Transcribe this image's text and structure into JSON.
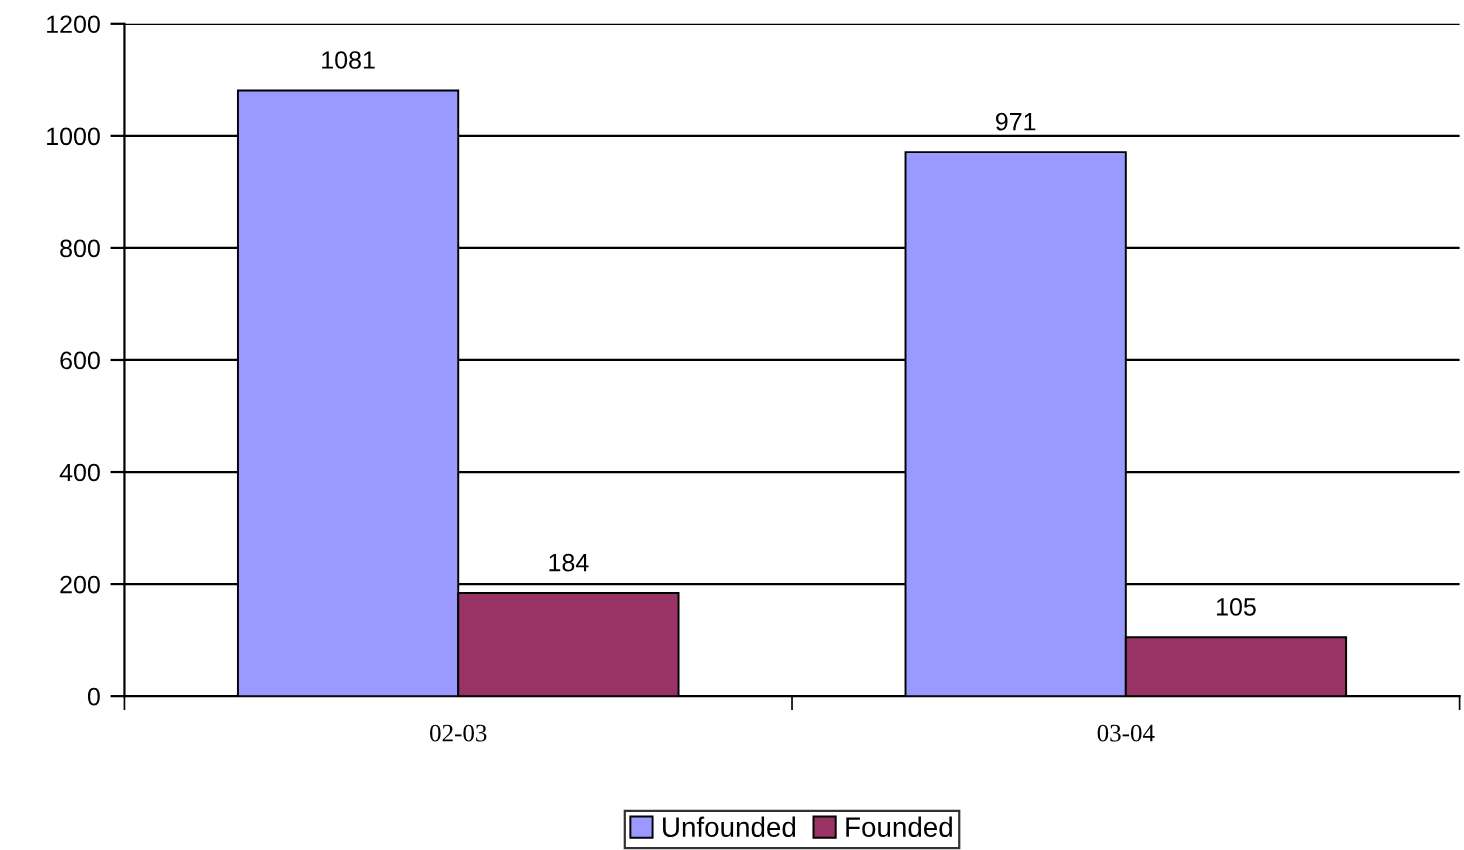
{
  "chart_data": {
    "type": "bar",
    "categories": [
      "02-03",
      "03-04"
    ],
    "series": [
      {
        "name": "Unfounded",
        "color": "#9999ff",
        "values": [
          1081,
          971
        ]
      },
      {
        "name": "Founded",
        "color": "#993366",
        "values": [
          184,
          105
        ]
      }
    ],
    "ylim": [
      0,
      1200
    ],
    "yticks": [
      0,
      200,
      400,
      600,
      800,
      1000,
      1200
    ],
    "grid": "y",
    "legend": "bottom",
    "data_labels": true
  }
}
